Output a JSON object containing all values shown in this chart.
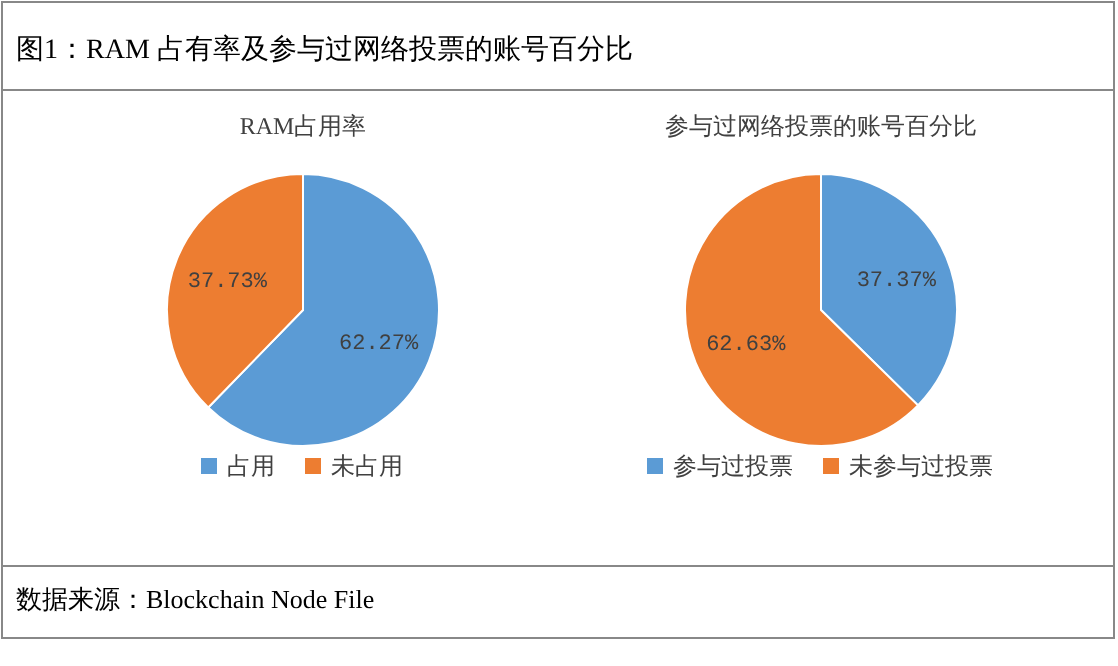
{
  "chart_data": [
    {
      "type": "pie",
      "title": "RAM占用率",
      "categories": [
        "占用",
        "未占用"
      ],
      "values": [
        62.27,
        37.73
      ],
      "colors": [
        "#5b9bd5",
        "#ed7d31"
      ],
      "value_labels": [
        "62.27%",
        "37.73%"
      ],
      "legend": "bottom",
      "annotations": [
        "图1：RAM 占有率及参与过网络投票的账号百分比"
      ]
    },
    {
      "type": "pie",
      "title": "参与过网络投票的账号百分比",
      "categories": [
        "参与过投票",
        "未参与过投票"
      ],
      "values": [
        37.37,
        62.63
      ],
      "colors": [
        "#5b9bd5",
        "#ed7d31"
      ],
      "value_labels": [
        "37.37%",
        "62.63%"
      ],
      "legend": "bottom",
      "annotations": [
        "数据来源：Blockchain Node File"
      ]
    }
  ]
}
